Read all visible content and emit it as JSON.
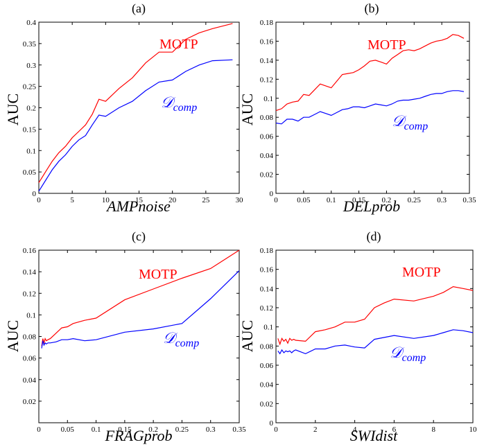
{
  "chart_data": [
    {
      "type": "line",
      "title": "(a)",
      "xlabel": "AMPnoise",
      "ylabel": "AUC",
      "xlim": [
        0,
        30
      ],
      "ylim": [
        0,
        0.4
      ],
      "xticks": [
        0,
        5,
        10,
        15,
        20,
        25,
        30
      ],
      "xtick_labels": [
        "0",
        "5",
        "10",
        "15",
        "20",
        "25",
        "30"
      ],
      "yticks": [
        0,
        0.05,
        0.1,
        0.15,
        0.2,
        0.25,
        0.3,
        0.35,
        0.4
      ],
      "ytick_labels": [
        "0",
        "0.05",
        "0.1",
        "0.15",
        "0.2",
        "0.25",
        "0.3",
        "0.35",
        "0.4"
      ],
      "grid": false,
      "legend": "inline labels",
      "series": [
        {
          "name": "MOTP",
          "color": "#ff0000",
          "x": [
            0,
            1,
            2,
            3,
            4,
            5,
            6,
            7,
            8,
            9,
            10,
            12,
            14,
            16,
            18,
            20,
            22,
            24,
            26,
            29
          ],
          "y": [
            0.025,
            0.05,
            0.075,
            0.095,
            0.11,
            0.13,
            0.145,
            0.16,
            0.185,
            0.22,
            0.215,
            0.245,
            0.27,
            0.305,
            0.33,
            0.33,
            0.36,
            0.375,
            0.385,
            0.397
          ]
        },
        {
          "name": "Dcomp",
          "label": "𝒟",
          "label_sub": "comp",
          "color": "#0000ff",
          "x": [
            0,
            1,
            2,
            3,
            4,
            5,
            6,
            7,
            8,
            9,
            10,
            12,
            14,
            16,
            18,
            20,
            22,
            24,
            26,
            29
          ],
          "y": [
            0.005,
            0.03,
            0.055,
            0.075,
            0.09,
            0.11,
            0.125,
            0.135,
            0.16,
            0.183,
            0.18,
            0.2,
            0.215,
            0.24,
            0.26,
            0.265,
            0.285,
            0.3,
            0.31,
            0.312
          ]
        }
      ]
    },
    {
      "type": "line",
      "title": "(b)",
      "xlabel": "DELprob",
      "ylabel": "AUC",
      "xlim": [
        0,
        0.35
      ],
      "ylim": [
        0,
        0.18
      ],
      "xticks": [
        0,
        0.05,
        0.1,
        0.15,
        0.2,
        0.25,
        0.3,
        0.35
      ],
      "xtick_labels": [
        "0",
        "0.05",
        "0.1",
        "0.15",
        "0.2",
        "0.25",
        "0.3",
        "0.35"
      ],
      "yticks": [
        0,
        0.02,
        0.04,
        0.06,
        0.08,
        0.1,
        0.12,
        0.14,
        0.16,
        0.18
      ],
      "ytick_labels": [
        "0",
        "0.02",
        "0.04",
        "0.06",
        "0.08",
        "0.1",
        "0.12",
        "0.14",
        "0.16",
        "0.18"
      ],
      "grid": false,
      "legend": "inline labels",
      "series": [
        {
          "name": "MOTP",
          "color": "#ff0000",
          "x": [
            0,
            0.01,
            0.02,
            0.03,
            0.04,
            0.05,
            0.06,
            0.07,
            0.08,
            0.09,
            0.1,
            0.11,
            0.12,
            0.13,
            0.14,
            0.15,
            0.16,
            0.17,
            0.18,
            0.19,
            0.2,
            0.21,
            0.22,
            0.23,
            0.24,
            0.25,
            0.26,
            0.27,
            0.28,
            0.29,
            0.3,
            0.31,
            0.32,
            0.33,
            0.34
          ],
          "y": [
            0.087,
            0.089,
            0.094,
            0.096,
            0.097,
            0.104,
            0.103,
            0.109,
            0.115,
            0.113,
            0.111,
            0.118,
            0.125,
            0.126,
            0.127,
            0.13,
            0.134,
            0.139,
            0.14,
            0.138,
            0.136,
            0.142,
            0.146,
            0.15,
            0.151,
            0.15,
            0.152,
            0.155,
            0.158,
            0.16,
            0.161,
            0.163,
            0.167,
            0.166,
            0.163
          ]
        },
        {
          "name": "Dcomp",
          "label": "𝒟",
          "label_sub": "comp",
          "color": "#0000ff",
          "x": [
            0,
            0.01,
            0.02,
            0.03,
            0.04,
            0.05,
            0.06,
            0.07,
            0.08,
            0.09,
            0.1,
            0.11,
            0.12,
            0.13,
            0.14,
            0.15,
            0.16,
            0.17,
            0.18,
            0.19,
            0.2,
            0.21,
            0.22,
            0.23,
            0.24,
            0.25,
            0.26,
            0.27,
            0.28,
            0.29,
            0.3,
            0.31,
            0.32,
            0.33,
            0.34
          ],
          "y": [
            0.074,
            0.073,
            0.078,
            0.078,
            0.076,
            0.08,
            0.08,
            0.083,
            0.086,
            0.084,
            0.082,
            0.085,
            0.088,
            0.089,
            0.091,
            0.091,
            0.09,
            0.092,
            0.094,
            0.093,
            0.092,
            0.094,
            0.097,
            0.098,
            0.098,
            0.099,
            0.1,
            0.102,
            0.104,
            0.105,
            0.105,
            0.107,
            0.108,
            0.108,
            0.107
          ]
        }
      ]
    },
    {
      "type": "line",
      "title": "(c)",
      "xlabel": "FRAGprob",
      "ylabel": "AUC",
      "xlim": [
        0,
        0.35
      ],
      "ylim": [
        0,
        0.16
      ],
      "xticks": [
        0,
        0.05,
        0.1,
        0.15,
        0.2,
        0.25,
        0.3,
        0.35
      ],
      "xtick_labels": [
        "0",
        "0.05",
        "0.1",
        "0.15",
        "0.2",
        "0.25",
        "0.3",
        "0.35"
      ],
      "yticks": [
        0.02,
        0.04,
        0.06,
        0.08,
        0.1,
        0.12,
        0.14,
        0.16
      ],
      "ytick_labels": [
        "0.02",
        "0.04",
        "0.06",
        "0.08",
        "0.1",
        "0.12",
        "0.14",
        "0.16"
      ],
      "grid": false,
      "legend": "inline labels",
      "series": [
        {
          "name": "MOTP",
          "color": "#ff0000",
          "x": [
            0.005,
            0.007,
            0.009,
            0.011,
            0.013,
            0.016,
            0.02,
            0.03,
            0.04,
            0.05,
            0.06,
            0.08,
            0.1,
            0.15,
            0.2,
            0.25,
            0.3,
            0.35
          ],
          "y": [
            0.071,
            0.078,
            0.074,
            0.078,
            0.076,
            0.077,
            0.078,
            0.083,
            0.088,
            0.089,
            0.092,
            0.095,
            0.097,
            0.114,
            0.124,
            0.134,
            0.143,
            0.16
          ]
        },
        {
          "name": "Dcomp",
          "label": "𝒟",
          "label_sub": "comp",
          "color": "#0000ff",
          "x": [
            0.005,
            0.007,
            0.009,
            0.011,
            0.013,
            0.016,
            0.02,
            0.03,
            0.04,
            0.05,
            0.06,
            0.08,
            0.1,
            0.15,
            0.2,
            0.25,
            0.3,
            0.35
          ],
          "y": [
            0.069,
            0.076,
            0.072,
            0.074,
            0.073,
            0.074,
            0.074,
            0.075,
            0.077,
            0.077,
            0.078,
            0.076,
            0.077,
            0.084,
            0.087,
            0.092,
            0.115,
            0.141
          ]
        }
      ]
    },
    {
      "type": "line",
      "title": "(d)",
      "xlabel": "SWIdist",
      "ylabel": "AUC",
      "xlim": [
        0,
        10
      ],
      "ylim": [
        0,
        0.18
      ],
      "xticks": [
        0,
        2,
        4,
        6,
        8,
        10
      ],
      "xtick_labels": [
        "0",
        "2",
        "4",
        "6",
        "8",
        "10"
      ],
      "yticks": [
        0,
        0.02,
        0.04,
        0.06,
        0.08,
        0.1,
        0.12,
        0.14,
        0.16,
        0.18
      ],
      "ytick_labels": [
        "0",
        "0.02",
        "0.04",
        "0.06",
        "0.08",
        "0.1",
        "0.12",
        "0.14",
        "0.16",
        "0.18"
      ],
      "grid": false,
      "legend": "inline labels",
      "series": [
        {
          "name": "MOTP",
          "color": "#ff0000",
          "x": [
            0.1,
            0.2,
            0.3,
            0.4,
            0.5,
            0.6,
            0.7,
            0.8,
            0.9,
            1.0,
            1.5,
            2.0,
            2.5,
            3.0,
            3.5,
            4.0,
            4.5,
            5.0,
            5.5,
            6.0,
            7.0,
            8.0,
            8.5,
            9.0,
            9.5,
            10.0
          ],
          "y": [
            0.088,
            0.082,
            0.088,
            0.085,
            0.087,
            0.083,
            0.088,
            0.086,
            0.087,
            0.086,
            0.085,
            0.095,
            0.097,
            0.1,
            0.105,
            0.105,
            0.108,
            0.12,
            0.125,
            0.129,
            0.127,
            0.132,
            0.136,
            0.142,
            0.14,
            0.138
          ]
        },
        {
          "name": "Dcomp",
          "label": "𝒟",
          "label_sub": "comp",
          "color": "#0000ff",
          "x": [
            0.1,
            0.2,
            0.3,
            0.4,
            0.5,
            0.6,
            0.7,
            0.8,
            0.9,
            1.0,
            1.5,
            2.0,
            2.5,
            3.0,
            3.5,
            4.0,
            4.5,
            5.0,
            5.5,
            6.0,
            7.0,
            8.0,
            8.5,
            9.0,
            9.5,
            10.0
          ],
          "y": [
            0.075,
            0.072,
            0.076,
            0.073,
            0.075,
            0.074,
            0.075,
            0.073,
            0.075,
            0.076,
            0.072,
            0.077,
            0.077,
            0.08,
            0.081,
            0.079,
            0.078,
            0.087,
            0.089,
            0.091,
            0.088,
            0.091,
            0.094,
            0.097,
            0.096,
            0.094
          ]
        }
      ]
    }
  ]
}
